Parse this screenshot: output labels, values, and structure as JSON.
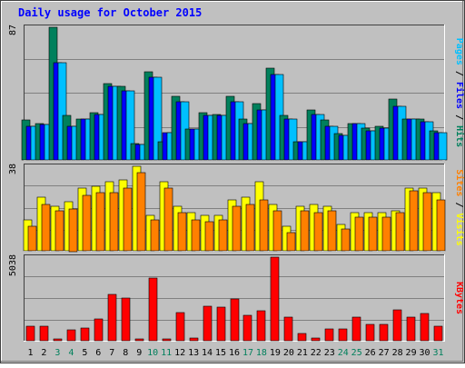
{
  "chart_data": {
    "type": "bar",
    "title": "Daily usage for October 2015",
    "categories": [
      "1",
      "2",
      "3",
      "4",
      "5",
      "6",
      "7",
      "8",
      "9",
      "10",
      "11",
      "12",
      "13",
      "14",
      "15",
      "16",
      "17",
      "18",
      "19",
      "20",
      "21",
      "22",
      "23",
      "24",
      "25",
      "26",
      "27",
      "28",
      "29",
      "30",
      "31"
    ],
    "weekend_days": [
      "3",
      "4",
      "10",
      "11",
      "17",
      "18",
      "24",
      "25",
      "31"
    ],
    "panels": [
      {
        "id": "hits",
        "max_label": "87",
        "ylim": [
          0,
          87
        ],
        "axis_title_parts": [
          "Pages",
          "Files",
          "Hits"
        ],
        "series": [
          {
            "name": "Hits",
            "color": "#00805c",
            "values": [
              26,
              24,
              87,
              29,
              27,
              31,
              50,
              48,
              11,
              58,
              12,
              42,
              20,
              31,
              30,
              42,
              27,
              37,
              60,
              29,
              12,
              33,
              26,
              17,
              24,
              21,
              22,
              40,
              27,
              27,
              19
            ]
          },
          {
            "name": "Files",
            "color": "#0000ff",
            "values": [
              22,
              23,
              64,
              22,
              27,
              30,
              48,
              45,
              10,
              54,
              18,
              38,
              20,
              29,
              29,
              38,
              24,
              33,
              56,
              27,
              12,
              30,
              22,
              16,
              24,
              19,
              21,
              35,
              27,
              25,
              18
            ]
          },
          {
            "name": "Pages",
            "color": "#00c0ff",
            "values": [
              22,
              23,
              64,
              22,
              27,
              30,
              48,
              45,
              10,
              54,
              18,
              38,
              20,
              29,
              29,
              38,
              24,
              33,
              56,
              27,
              12,
              30,
              22,
              16,
              24,
              19,
              21,
              35,
              27,
              25,
              18
            ]
          }
        ]
      },
      {
        "id": "visits",
        "max_label": "38",
        "ylim": [
          0,
          38
        ],
        "axis_title_parts": [
          "Sites",
          "Visits"
        ],
        "series": [
          {
            "name": "Visits",
            "color": "#ffff00",
            "values": [
              14,
              24,
              20,
              22,
              28,
              29,
              31,
              32,
              38,
              16,
              31,
              20,
              17,
              16,
              16,
              23,
              24,
              31,
              21,
              11,
              20,
              21,
              20,
              12,
              17,
              17,
              17,
              18,
              28,
              28,
              26
            ]
          },
          {
            "name": "Sites",
            "color": "#ff8000",
            "values": [
              11,
              21,
              18,
              19,
              25,
              26,
              26,
              28,
              35,
              14,
              28,
              17,
              14,
              13,
              14,
              20,
              21,
              23,
              18,
              8,
              18,
              17,
              18,
              10,
              15,
              15,
              15,
              17,
              27,
              26,
              23
            ]
          }
        ]
      },
      {
        "id": "kbytes",
        "max_label": "5038",
        "ylim": [
          0,
          5038
        ],
        "axis_title_parts": [
          "KBytes"
        ],
        "series": [
          {
            "name": "KBytes",
            "color": "#ff0000",
            "values": [
              850,
              900,
              100,
              650,
              750,
              1300,
              2800,
              2600,
              100,
              3800,
              100,
              1700,
              150,
              2100,
              2000,
              2500,
              1550,
              1800,
              5038,
              1450,
              450,
              150,
              700,
              700,
              1450,
              1000,
              1000,
              1850,
              1400,
              1650,
              900
            ]
          }
        ]
      }
    ],
    "grid": true,
    "colors": {
      "background": "#c0c0c0",
      "title": "#0000ff",
      "weekend_label": "#00805c",
      "weekday_label": "#000000"
    }
  }
}
